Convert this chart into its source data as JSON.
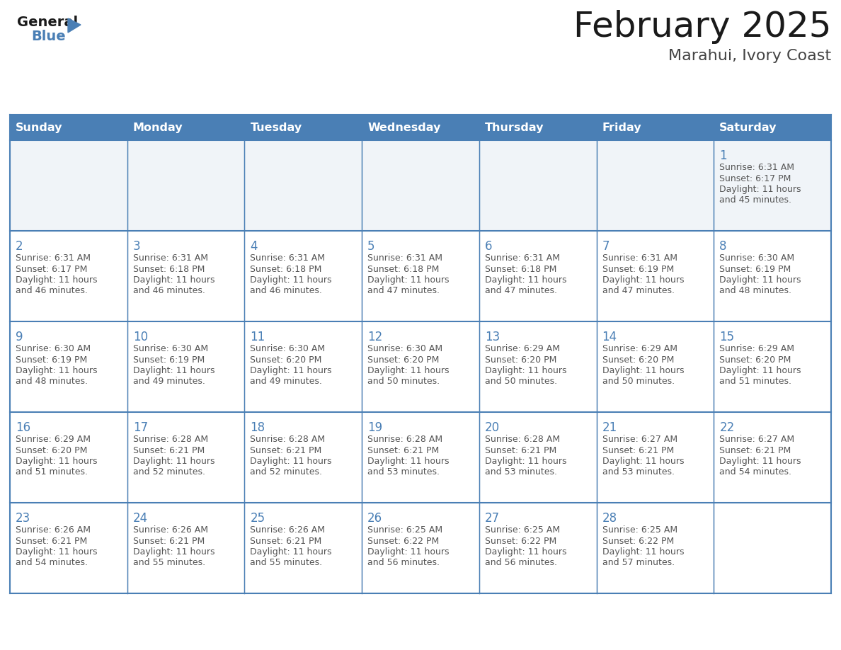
{
  "title": "February 2025",
  "subtitle": "Marahui, Ivory Coast",
  "header_color": "#4a7fb5",
  "header_text_color": "#ffffff",
  "cell_bg_color": "#ffffff",
  "cell_alt_bg_color": "#f0f4f8",
  "grid_line_color": "#4a7fb5",
  "day_number_color": "#4a7fb5",
  "info_text_color": "#555555",
  "days_of_week": [
    "Sunday",
    "Monday",
    "Tuesday",
    "Wednesday",
    "Thursday",
    "Friday",
    "Saturday"
  ],
  "calendar_data": [
    [
      null,
      null,
      null,
      null,
      null,
      null,
      {
        "day": 1,
        "sunrise": "6:31 AM",
        "sunset": "6:17 PM",
        "daylight": "11 hours\nand 45 minutes."
      }
    ],
    [
      {
        "day": 2,
        "sunrise": "6:31 AM",
        "sunset": "6:17 PM",
        "daylight": "11 hours\nand 46 minutes."
      },
      {
        "day": 3,
        "sunrise": "6:31 AM",
        "sunset": "6:18 PM",
        "daylight": "11 hours\nand 46 minutes."
      },
      {
        "day": 4,
        "sunrise": "6:31 AM",
        "sunset": "6:18 PM",
        "daylight": "11 hours\nand 46 minutes."
      },
      {
        "day": 5,
        "sunrise": "6:31 AM",
        "sunset": "6:18 PM",
        "daylight": "11 hours\nand 47 minutes."
      },
      {
        "day": 6,
        "sunrise": "6:31 AM",
        "sunset": "6:18 PM",
        "daylight": "11 hours\nand 47 minutes."
      },
      {
        "day": 7,
        "sunrise": "6:31 AM",
        "sunset": "6:19 PM",
        "daylight": "11 hours\nand 47 minutes."
      },
      {
        "day": 8,
        "sunrise": "6:30 AM",
        "sunset": "6:19 PM",
        "daylight": "11 hours\nand 48 minutes."
      }
    ],
    [
      {
        "day": 9,
        "sunrise": "6:30 AM",
        "sunset": "6:19 PM",
        "daylight": "11 hours\nand 48 minutes."
      },
      {
        "day": 10,
        "sunrise": "6:30 AM",
        "sunset": "6:19 PM",
        "daylight": "11 hours\nand 49 minutes."
      },
      {
        "day": 11,
        "sunrise": "6:30 AM",
        "sunset": "6:20 PM",
        "daylight": "11 hours\nand 49 minutes."
      },
      {
        "day": 12,
        "sunrise": "6:30 AM",
        "sunset": "6:20 PM",
        "daylight": "11 hours\nand 50 minutes."
      },
      {
        "day": 13,
        "sunrise": "6:29 AM",
        "sunset": "6:20 PM",
        "daylight": "11 hours\nand 50 minutes."
      },
      {
        "day": 14,
        "sunrise": "6:29 AM",
        "sunset": "6:20 PM",
        "daylight": "11 hours\nand 50 minutes."
      },
      {
        "day": 15,
        "sunrise": "6:29 AM",
        "sunset": "6:20 PM",
        "daylight": "11 hours\nand 51 minutes."
      }
    ],
    [
      {
        "day": 16,
        "sunrise": "6:29 AM",
        "sunset": "6:20 PM",
        "daylight": "11 hours\nand 51 minutes."
      },
      {
        "day": 17,
        "sunrise": "6:28 AM",
        "sunset": "6:21 PM",
        "daylight": "11 hours\nand 52 minutes."
      },
      {
        "day": 18,
        "sunrise": "6:28 AM",
        "sunset": "6:21 PM",
        "daylight": "11 hours\nand 52 minutes."
      },
      {
        "day": 19,
        "sunrise": "6:28 AM",
        "sunset": "6:21 PM",
        "daylight": "11 hours\nand 53 minutes."
      },
      {
        "day": 20,
        "sunrise": "6:28 AM",
        "sunset": "6:21 PM",
        "daylight": "11 hours\nand 53 minutes."
      },
      {
        "day": 21,
        "sunrise": "6:27 AM",
        "sunset": "6:21 PM",
        "daylight": "11 hours\nand 53 minutes."
      },
      {
        "day": 22,
        "sunrise": "6:27 AM",
        "sunset": "6:21 PM",
        "daylight": "11 hours\nand 54 minutes."
      }
    ],
    [
      {
        "day": 23,
        "sunrise": "6:26 AM",
        "sunset": "6:21 PM",
        "daylight": "11 hours\nand 54 minutes."
      },
      {
        "day": 24,
        "sunrise": "6:26 AM",
        "sunset": "6:21 PM",
        "daylight": "11 hours\nand 55 minutes."
      },
      {
        "day": 25,
        "sunrise": "6:26 AM",
        "sunset": "6:21 PM",
        "daylight": "11 hours\nand 55 minutes."
      },
      {
        "day": 26,
        "sunrise": "6:25 AM",
        "sunset": "6:22 PM",
        "daylight": "11 hours\nand 56 minutes."
      },
      {
        "day": 27,
        "sunrise": "6:25 AM",
        "sunset": "6:22 PM",
        "daylight": "11 hours\nand 56 minutes."
      },
      {
        "day": 28,
        "sunrise": "6:25 AM",
        "sunset": "6:22 PM",
        "daylight": "11 hours\nand 57 minutes."
      },
      null
    ]
  ],
  "logo_general_color": "#1a1a1a",
  "logo_blue_color": "#4a7fb5",
  "logo_triangle_color": "#4a7fb5",
  "title_color": "#1a1a1a",
  "subtitle_color": "#444444",
  "fig_width": 11.88,
  "fig_height": 9.18,
  "dpi": 100
}
